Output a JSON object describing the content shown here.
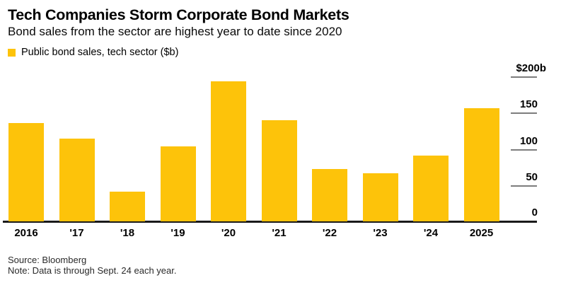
{
  "header": {
    "title": "Tech Companies Storm Corporate Bond Markets",
    "subtitle": "Bond sales from the sector are highest year to date since 2020",
    "legend_label": "Public bond sales, tech sector ($b)"
  },
  "chart_data": {
    "type": "bar",
    "title": "Public bond sales, tech sector ($b)",
    "categories": [
      "2016",
      "'17",
      "'18",
      "'19",
      "'20",
      "'21",
      "'22",
      "'23",
      "'24",
      "2025"
    ],
    "values": [
      136,
      114,
      41,
      103,
      193,
      140,
      72,
      66,
      91,
      156
    ],
    "unit": "$b",
    "xlabel": "",
    "ylabel": "",
    "ylim": [
      0,
      200
    ],
    "yticks": [
      0,
      50,
      100,
      150,
      200
    ],
    "ytick_labels": [
      "0",
      "50",
      "100",
      "150",
      "$200b"
    ],
    "grid": false,
    "legend_position": "top-left",
    "bar_color": "#FDC30A",
    "axis_line_color": "#1A1A1A",
    "tick_line_color": "#7D7D7D",
    "text_color": "#000000"
  },
  "footer": {
    "source": "Source: Bloomberg",
    "note": "Note: Data is through Sept. 24 each year."
  }
}
